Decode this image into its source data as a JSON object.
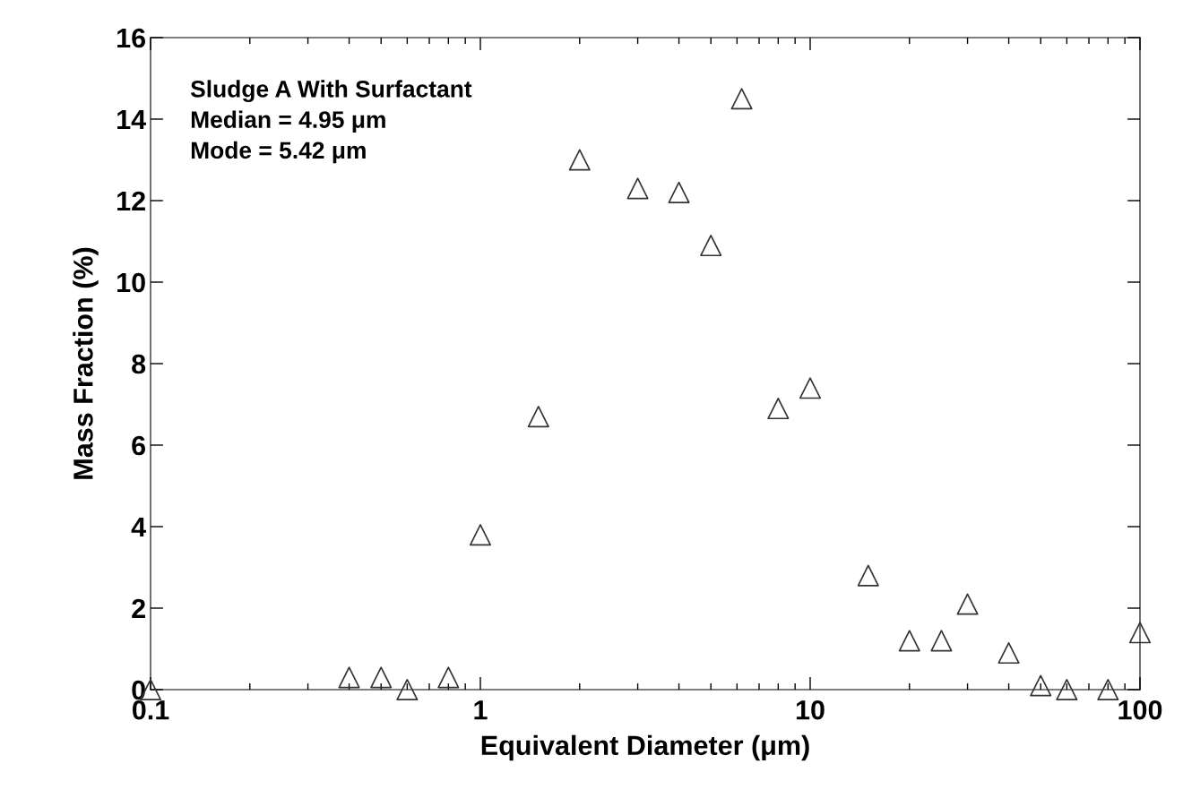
{
  "chart_data": {
    "type": "scatter",
    "xlabel": "Equivalent Diameter (μm)",
    "ylabel": "Mass Fraction (%)",
    "annotations": [
      "Sludge A With Surfactant",
      "Median = 4.95 μm",
      "Mode = 5.42 μm"
    ],
    "log": "x",
    "xlim": [
      0.1,
      100
    ],
    "xticks": [
      0.1,
      1,
      10,
      100
    ],
    "ylim": [
      0,
      16
    ],
    "yticks": [
      0,
      2,
      4,
      6,
      8,
      10,
      12,
      14,
      16
    ],
    "grid": false,
    "marker": "triangle",
    "series": [
      {
        "color": "#333333",
        "x": [
          0.1,
          0.4,
          0.5,
          0.6,
          0.8,
          1,
          1.5,
          2,
          3,
          4,
          5,
          6.2,
          8,
          10,
          15,
          20,
          25,
          30,
          40,
          50,
          60,
          80,
          100
        ],
        "values": [
          0,
          0.3,
          0.3,
          0,
          0.3,
          3.8,
          6.7,
          13.0,
          12.3,
          12.2,
          10.9,
          14.5,
          6.9,
          7.4,
          2.8,
          1.2,
          1.2,
          2.1,
          0.9,
          0.1,
          0,
          0,
          1.4
        ]
      }
    ]
  }
}
